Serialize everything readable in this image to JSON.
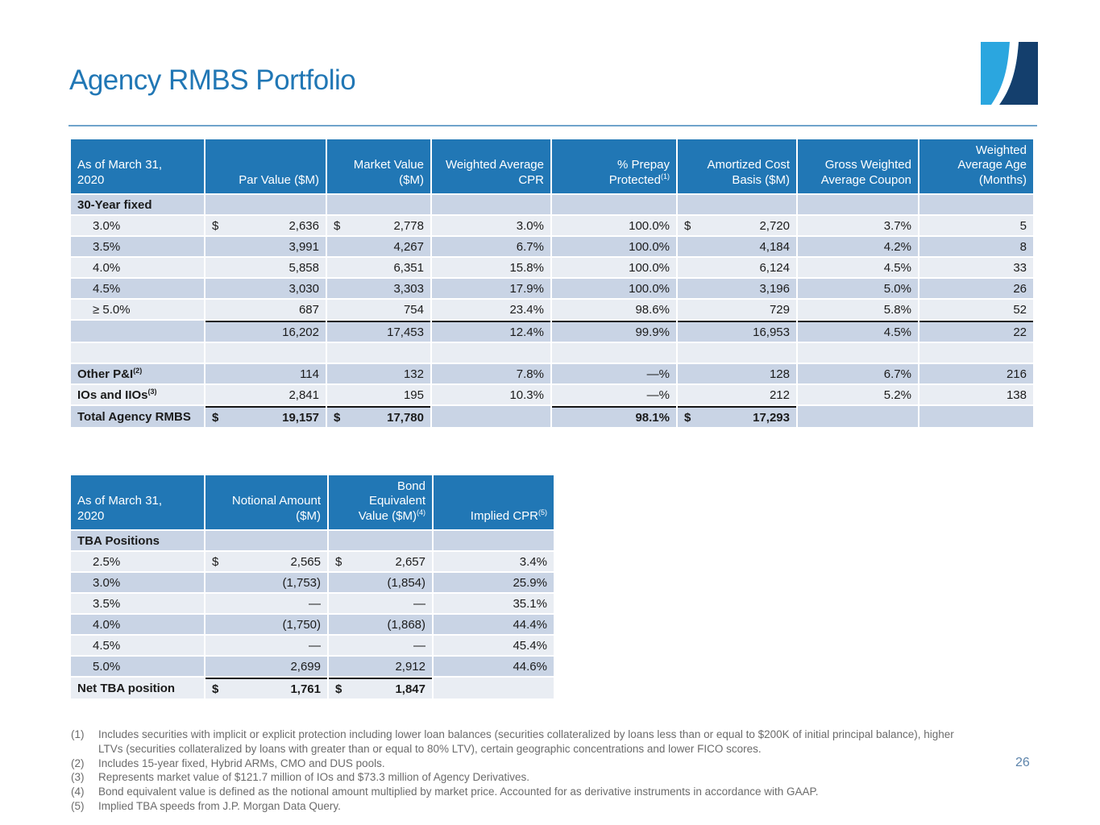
{
  "slide": {
    "title": "Agency RMBS Portfolio",
    "page_number": "26"
  },
  "colors": {
    "accent": "#2177B5",
    "header_bg": "#2177B5",
    "row_dark": "#C9D4E5",
    "row_light": "#E9EDF3",
    "divider": "#6FA3CB",
    "rule": "#141414",
    "footnote_text": "#6B6B6B",
    "page_number": "#5D84AB",
    "logo_light": "#2BA6DF",
    "logo_dark": "#143F6D"
  },
  "table1": {
    "headers": [
      {
        "text": "As of March 31,\n2020"
      },
      {
        "text": "Par Value ($M)"
      },
      {
        "text": "Market Value\n($M)"
      },
      {
        "text": "Weighted Average\nCPR"
      },
      {
        "text": "% Prepay\nProtected",
        "sup": "(1)"
      },
      {
        "text": "Amortized Cost\nBasis ($M)"
      },
      {
        "text": "Gross Weighted\nAverage Coupon"
      },
      {
        "text": "Weighted\nAverage Age\n(Months)"
      }
    ],
    "rows": [
      {
        "label": "30-Year fixed",
        "type": "section",
        "cells": [
          null,
          null,
          null,
          null,
          null,
          null,
          null
        ]
      },
      {
        "label": "3.0%",
        "type": "data",
        "indent": true,
        "cells": [
          {
            "p": "$",
            "v": "2,636"
          },
          {
            "p": "$",
            "v": "2,778"
          },
          {
            "v": "3.0%"
          },
          {
            "v": "100.0%"
          },
          {
            "p": "$",
            "v": "2,720"
          },
          {
            "v": "3.7%"
          },
          {
            "v": "5"
          }
        ]
      },
      {
        "label": "3.5%",
        "type": "data",
        "indent": true,
        "cells": [
          {
            "v": "3,991"
          },
          {
            "v": "4,267"
          },
          {
            "v": "6.7%"
          },
          {
            "v": "100.0%"
          },
          {
            "v": "4,184"
          },
          {
            "v": "4.2%"
          },
          {
            "v": "8"
          }
        ]
      },
      {
        "label": "4.0%",
        "type": "data",
        "indent": true,
        "cells": [
          {
            "v": "5,858"
          },
          {
            "v": "6,351"
          },
          {
            "v": "15.8%"
          },
          {
            "v": "100.0%"
          },
          {
            "v": "6,124"
          },
          {
            "v": "4.5%"
          },
          {
            "v": "33"
          }
        ]
      },
      {
        "label": "4.5%",
        "type": "data",
        "indent": true,
        "cells": [
          {
            "v": "3,030"
          },
          {
            "v": "3,303"
          },
          {
            "v": "17.9%"
          },
          {
            "v": "100.0%"
          },
          {
            "v": "3,196"
          },
          {
            "v": "5.0%"
          },
          {
            "v": "26"
          }
        ]
      },
      {
        "label": "≥ 5.0%",
        "type": "data",
        "indent": true,
        "cells": [
          {
            "v": "687"
          },
          {
            "v": "754"
          },
          {
            "v": "23.4%"
          },
          {
            "v": "98.6%"
          },
          {
            "v": "729"
          },
          {
            "v": "5.8%"
          },
          {
            "v": "52"
          }
        ]
      },
      {
        "label": "",
        "type": "subtotal",
        "rule_above": [
          0,
          1,
          2,
          3,
          4,
          5,
          6
        ],
        "cells": [
          {
            "v": "16,202"
          },
          {
            "v": "17,453"
          },
          {
            "v": "12.4%"
          },
          {
            "v": "99.9%"
          },
          {
            "v": "16,953"
          },
          {
            "v": "4.5%"
          },
          {
            "v": "22"
          }
        ]
      },
      {
        "label": "",
        "type": "blank",
        "cells": [
          null,
          null,
          null,
          null,
          null,
          null,
          null
        ]
      },
      {
        "label": "Other P&I",
        "label_sup": "(2)",
        "type": "labeled",
        "cells": [
          {
            "v": "114"
          },
          {
            "v": "132"
          },
          {
            "v": "7.8%"
          },
          {
            "v": "—%"
          },
          {
            "v": "128"
          },
          {
            "v": "6.7%"
          },
          {
            "v": "216"
          }
        ]
      },
      {
        "label": "IOs and IIOs",
        "label_sup": "(3)",
        "type": "labeled",
        "cells": [
          {
            "v": "2,841"
          },
          {
            "v": "195"
          },
          {
            "v": "10.3%"
          },
          {
            "v": "—%"
          },
          {
            "v": "212"
          },
          {
            "v": "5.2%"
          },
          {
            "v": "138"
          }
        ]
      },
      {
        "label": "Total Agency RMBS",
        "type": "total",
        "rule_above": [
          0,
          1,
          3,
          4
        ],
        "cells": [
          {
            "p": "$",
            "v": "19,157"
          },
          {
            "p": "$",
            "v": "17,780"
          },
          null,
          {
            "v": "98.1%"
          },
          {
            "p": "$",
            "v": "17,293"
          },
          null,
          null
        ]
      }
    ]
  },
  "table2": {
    "headers": [
      {
        "text": "As of March 31,\n2020"
      },
      {
        "text": "Notional Amount\n($M)"
      },
      {
        "text": "Bond\nEquivalent\nValue ($M)",
        "sup": "(4)"
      },
      {
        "text": "Implied CPR",
        "sup": "(5)"
      }
    ],
    "rows": [
      {
        "label": "TBA Positions",
        "type": "section",
        "cells": [
          null,
          null,
          null
        ]
      },
      {
        "label": "2.5%",
        "type": "data",
        "indent": true,
        "cells": [
          {
            "p": "$",
            "v": "2,565"
          },
          {
            "p": "$",
            "v": "2,657"
          },
          {
            "v": "3.4%"
          }
        ]
      },
      {
        "label": "3.0%",
        "type": "data",
        "indent": true,
        "cells": [
          {
            "v": "(1,753)"
          },
          {
            "v": "(1,854)"
          },
          {
            "v": "25.9%"
          }
        ]
      },
      {
        "label": "3.5%",
        "type": "data",
        "indent": true,
        "cells": [
          {
            "v": "—"
          },
          {
            "v": "—"
          },
          {
            "v": "35.1%"
          }
        ]
      },
      {
        "label": "4.0%",
        "type": "data",
        "indent": true,
        "cells": [
          {
            "v": "(1,750)"
          },
          {
            "v": "(1,868)"
          },
          {
            "v": "44.4%"
          }
        ]
      },
      {
        "label": "4.5%",
        "type": "data",
        "indent": true,
        "cells": [
          {
            "v": "—"
          },
          {
            "v": "—"
          },
          {
            "v": "45.4%"
          }
        ]
      },
      {
        "label": "5.0%",
        "type": "data",
        "indent": true,
        "cells": [
          {
            "v": "2,699"
          },
          {
            "v": "2,912"
          },
          {
            "v": "44.6%"
          }
        ]
      },
      {
        "label": "Net TBA position",
        "type": "total",
        "rule_above": [
          0,
          1
        ],
        "cells": [
          {
            "p": "$",
            "v": "1,761"
          },
          {
            "p": "$",
            "v": "1,847"
          },
          null
        ]
      }
    ]
  },
  "footnotes": [
    {
      "num": "(1)",
      "text": "Includes securities with implicit or explicit protection including lower loan balances (securities collateralized by loans less than or equal to $200K of initial principal balance), higher LTVs (securities collateralized by loans with greater than or equal to 80% LTV), certain geographic concentrations and lower FICO scores."
    },
    {
      "num": "(2)",
      "text": "Includes 15-year fixed, Hybrid ARMs, CMO and DUS pools."
    },
    {
      "num": "(3)",
      "text": "Represents market value of $121.7 million of IOs and $73.3 million of Agency Derivatives."
    },
    {
      "num": "(4)",
      "text": "Bond equivalent value is defined as the notional amount multiplied by market price. Accounted for as derivative instruments in accordance with GAAP."
    },
    {
      "num": "(5)",
      "text": "Implied TBA speeds from J.P. Morgan Data Query."
    }
  ]
}
